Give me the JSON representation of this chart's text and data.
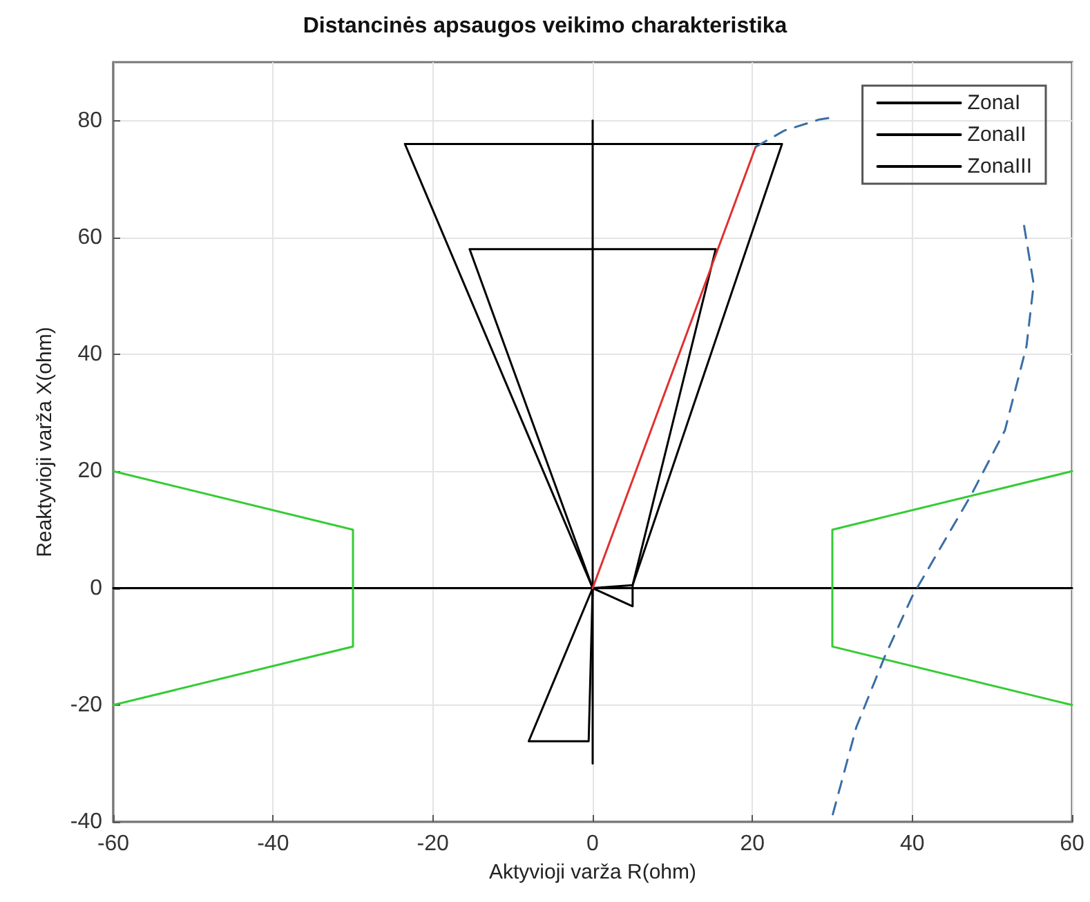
{
  "chart_data": {
    "type": "line",
    "title": "Distancinės apsaugos veikimo charakteristika",
    "xlabel": "Aktyvioji varža R(ohm)",
    "ylabel": "Reaktyvioji varža X(ohm)",
    "xlim": [
      -60,
      60
    ],
    "xticks": [
      -60,
      -40,
      -20,
      0,
      20,
      40,
      60
    ],
    "ylim": [
      -40,
      90
    ],
    "yticks": [
      -40,
      -20,
      0,
      20,
      40,
      60,
      80
    ],
    "grid": true,
    "legend": "top right",
    "marker": "none",
    "line_style": "solid",
    "series": [
      {
        "name": "ZonaI",
        "color": "#000000",
        "x": [
          15.4,
          5,
          5,
          0,
          -15.4,
          null,
          -15.4,
          15.4
        ],
        "values": [
          58,
          0.5,
          -3.1,
          0,
          58,
          null,
          58,
          58
        ]
      },
      {
        "name": "ZonaII",
        "color": "#000000",
        "x": [
          23.7,
          5,
          0,
          -23.5,
          null,
          -23.5,
          23.7
        ],
        "values": [
          76,
          0.5,
          0,
          76,
          null,
          76,
          76
        ]
      },
      {
        "name": "ZonaIII",
        "color": "#000000",
        "x": [
          0,
          -0.5,
          -8,
          null,
          -8,
          0
        ],
        "values": [
          0,
          -26.2,
          -26.2,
          null,
          -26.2,
          0
        ]
      },
      {
        "color": "#000000",
        "x": [
          0,
          0
        ],
        "values": [
          -30,
          80
        ]
      },
      {
        "color": "#000000",
        "x": [
          -60,
          60
        ],
        "values": [
          0,
          0
        ]
      },
      {
        "color": "#e03030",
        "x": [
          0,
          20.4
        ],
        "values": [
          0,
          75.5
        ]
      },
      {
        "color": "#33cc33",
        "x": [
          -60,
          -30,
          -30,
          -60
        ],
        "values": [
          20,
          10,
          -10,
          -20
        ]
      },
      {
        "color": "#33cc33",
        "x": [
          60,
          30,
          30,
          60
        ],
        "values": [
          20,
          10,
          -10,
          -20
        ]
      },
      {
        "color": "#3a6ea5",
        "line_style": "dashed",
        "x": [
          20.4,
          24,
          28.4,
          30.4,
          42,
          54,
          55.2,
          54.3,
          51.6,
          47.4,
          40,
          36.5,
          33,
          29.9
        ],
        "values": [
          75.5,
          78.3,
          80.2,
          80.6,
          null,
          62,
          52,
          41.4,
          27,
          16,
          -1.4,
          -11.9,
          -23.8,
          -39.5
        ]
      }
    ]
  }
}
